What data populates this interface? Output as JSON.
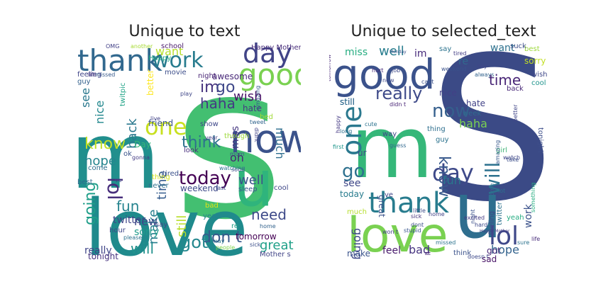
{
  "panels": [
    {
      "title": "Unique to text",
      "words": [
        {
          "text": "s",
          "weight": 1.0,
          "color": "#43bf71"
        },
        {
          "text": "love",
          "weight": 0.55,
          "color": "#1f8a8c"
        },
        {
          "text": "m",
          "weight": 0.52,
          "color": "#218f8d"
        },
        {
          "text": "u",
          "weight": 0.45,
          "color": "#2fb47c"
        },
        {
          "text": "now",
          "weight": 0.28,
          "color": "#3b528b"
        },
        {
          "text": "thank",
          "weight": 0.22,
          "color": "#31688e"
        },
        {
          "text": "good",
          "weight": 0.22,
          "color": "#7ad151"
        },
        {
          "text": "day",
          "weight": 0.22,
          "color": "#414487"
        },
        {
          "text": "work",
          "weight": 0.2,
          "color": "#287c8e"
        },
        {
          "text": "one",
          "weight": 0.2,
          "color": "#c8e020"
        },
        {
          "text": "today",
          "weight": 0.14,
          "color": "#440154"
        },
        {
          "text": "lol",
          "weight": 0.14,
          "color": "#472d7b"
        },
        {
          "text": "think",
          "weight": 0.12,
          "color": "#2c728e"
        },
        {
          "text": "im",
          "weight": 0.12,
          "color": "#46337e"
        },
        {
          "text": "go",
          "weight": 0.12,
          "color": "#3f4889"
        },
        {
          "text": "haha",
          "weight": 0.11,
          "color": "#443a83"
        },
        {
          "text": "don t",
          "weight": 0.11,
          "color": "#38588c"
        },
        {
          "text": "got",
          "weight": 0.11,
          "color": "#24878e"
        },
        {
          "text": "want",
          "weight": 0.1,
          "color": "#b5de2b"
        },
        {
          "text": "time",
          "weight": 0.1,
          "color": "#365c8d"
        },
        {
          "text": "know",
          "weight": 0.1,
          "color": "#c0df25"
        },
        {
          "text": "wish",
          "weight": 0.1,
          "color": "#481467"
        },
        {
          "text": "back",
          "weight": 0.1,
          "color": "#2a788e"
        },
        {
          "text": "going",
          "weight": 0.1,
          "color": "#1f9e89"
        },
        {
          "text": "fun",
          "weight": 0.09,
          "color": "#25838e"
        },
        {
          "text": "need",
          "weight": 0.09,
          "color": "#3e4a89"
        },
        {
          "text": "will",
          "weight": 0.09,
          "color": "#21918c"
        },
        {
          "text": "make",
          "weight": 0.09,
          "color": "#277f8e"
        },
        {
          "text": "still",
          "weight": 0.09,
          "color": "#b8de29"
        },
        {
          "text": "great",
          "weight": 0.08,
          "color": "#1fa088"
        },
        {
          "text": "well",
          "weight": 0.08,
          "color": "#3b528b"
        },
        {
          "text": "much",
          "weight": 0.08,
          "color": "#2e6e8e"
        },
        {
          "text": "see",
          "weight": 0.08,
          "color": "#2a788e"
        },
        {
          "text": "new",
          "weight": 0.07,
          "color": "#3e4989"
        },
        {
          "text": "oh",
          "weight": 0.07,
          "color": "#482576"
        },
        {
          "text": "miss",
          "weight": 0.07,
          "color": "#453781"
        },
        {
          "text": "hope",
          "weight": 0.07,
          "color": "#25858e"
        },
        {
          "text": "nice",
          "weight": 0.07,
          "color": "#23888e"
        },
        {
          "text": "sorry",
          "weight": 0.06,
          "color": "#1e9b8a"
        },
        {
          "text": "twitter",
          "weight": 0.05,
          "color": "#404688"
        },
        {
          "text": "really",
          "weight": 0.05,
          "color": "#404688"
        },
        {
          "text": "tonight",
          "weight": 0.05,
          "color": "#46327e"
        },
        {
          "text": "tomorrow",
          "weight": 0.05,
          "color": "#440154"
        },
        {
          "text": "weekend",
          "weight": 0.05,
          "color": "#3e4989"
        },
        {
          "text": "come",
          "weight": 0.04,
          "color": "#2d708e"
        },
        {
          "text": "best",
          "weight": 0.04,
          "color": "#306a8e"
        },
        {
          "text": "sleep",
          "weight": 0.04,
          "color": "#39568c"
        },
        {
          "text": "friend",
          "weight": 0.04,
          "color": "#3a538b"
        },
        {
          "text": "night",
          "weight": 0.04,
          "color": "#482475"
        },
        {
          "text": "hate",
          "weight": 0.04,
          "color": "#453882"
        },
        {
          "text": "awesome",
          "weight": 0.04,
          "color": "#482878"
        },
        {
          "text": "school",
          "weight": 0.035,
          "color": "#48186a"
        },
        {
          "text": "Happy Mother",
          "weight": 0.035,
          "color": "#472c7a"
        },
        {
          "text": "Mother s",
          "weight": 0.03,
          "color": "#414487"
        },
        {
          "text": "movie",
          "weight": 0.03,
          "color": "#3d4e8a"
        },
        {
          "text": "tired",
          "weight": 0.03,
          "color": "#3b518b"
        },
        {
          "text": "people",
          "weight": 0.03,
          "color": "#7fd34e"
        },
        {
          "text": "cool",
          "weight": 0.03,
          "color": "#3f4788"
        },
        {
          "text": "home",
          "weight": 0.03,
          "color": "#33638d"
        },
        {
          "text": "bad",
          "weight": 0.03,
          "color": "#dde318"
        },
        {
          "text": "guy",
          "weight": 0.03,
          "color": "#34618d"
        },
        {
          "text": "feeling",
          "weight": 0.03,
          "color": "#404588"
        },
        {
          "text": "life",
          "weight": 0.03,
          "color": "#46307e"
        },
        {
          "text": "twitpic",
          "weight": 0.03,
          "color": "#20a386"
        },
        {
          "text": "hour",
          "weight": 0.03,
          "color": "#3f4788"
        },
        {
          "text": "thing",
          "weight": 0.03,
          "color": "#d2e21b"
        },
        {
          "text": "look",
          "weight": 0.03,
          "color": "#472e7c"
        },
        {
          "text": "yeah",
          "weight": 0.03,
          "color": "#26818e"
        },
        {
          "text": "OMG",
          "weight": 0.025,
          "color": "#424086"
        },
        {
          "text": "another",
          "weight": 0.025,
          "color": "#a8db34"
        },
        {
          "text": "missed",
          "weight": 0.025,
          "color": "#375a8c"
        },
        {
          "text": "Happy",
          "weight": 0.025,
          "color": "#22a785"
        },
        {
          "text": "show",
          "weight": 0.025,
          "color": "#3f4889"
        },
        {
          "text": "though",
          "weight": 0.025,
          "color": "#9dd93b"
        },
        {
          "text": "never",
          "weight": 0.025,
          "color": "#2d718e"
        },
        {
          "text": "better",
          "weight": 0.025,
          "color": "#fde725"
        },
        {
          "text": "sick",
          "weight": 0.025,
          "color": "#3c4f8a"
        },
        {
          "text": "please",
          "weight": 0.025,
          "color": "#2c738e"
        },
        {
          "text": "year",
          "weight": 0.025,
          "color": "#433e85"
        },
        {
          "text": "soon",
          "weight": 0.02,
          "color": "#3e4a89"
        },
        {
          "text": "last",
          "weight": 0.02,
          "color": "#3d4d8a"
        },
        {
          "text": "mom",
          "weight": 0.02,
          "color": "#3b528b"
        },
        {
          "text": "gonna",
          "weight": 0.02,
          "color": "#443b84"
        },
        {
          "text": "say",
          "weight": 0.02,
          "color": "#3f4788"
        },
        {
          "text": "Day",
          "weight": 0.02,
          "color": "#35b779"
        },
        {
          "text": "ok",
          "weight": 0.02,
          "color": "#3a538b"
        },
        {
          "text": "ve",
          "weight": 0.02,
          "color": "#3d4e8a"
        },
        {
          "text": "re",
          "weight": 0.02,
          "color": "#1f9f88"
        },
        {
          "text": "bed",
          "weight": 0.02,
          "color": "#a2da37"
        },
        {
          "text": "may",
          "weight": 0.02,
          "color": "#2a768e"
        },
        {
          "text": "live",
          "weight": 0.02,
          "color": "#414287"
        },
        {
          "text": "play",
          "weight": 0.02,
          "color": "#3f4788"
        },
        {
          "text": "didnt",
          "weight": 0.02,
          "color": "#414487"
        },
        {
          "text": "amazing",
          "weight": 0.02,
          "color": "#365d8d"
        },
        {
          "text": "tweet",
          "weight": 0.02,
          "color": "#32658e"
        },
        {
          "text": "watching",
          "weight": 0.02,
          "color": "#2c738e"
        }
      ]
    },
    {
      "title": "Unique to selected_text",
      "words": [
        {
          "text": "S",
          "weight": 1.0,
          "color": "#3b4a86"
        },
        {
          "text": "m",
          "weight": 0.55,
          "color": "#35b779"
        },
        {
          "text": "u",
          "weight": 0.5,
          "color": "#2e6e8e"
        },
        {
          "text": "love",
          "weight": 0.38,
          "color": "#7ad151"
        },
        {
          "text": "good",
          "weight": 0.32,
          "color": "#3b528b"
        },
        {
          "text": "one",
          "weight": 0.24,
          "color": "#2a788e"
        },
        {
          "text": "thank",
          "weight": 0.22,
          "color": "#287c8e"
        },
        {
          "text": "day",
          "weight": 0.2,
          "color": "#3e4989"
        },
        {
          "text": "lol",
          "weight": 0.2,
          "color": "#3f4889"
        },
        {
          "text": "now",
          "weight": 0.14,
          "color": "#355f8d"
        },
        {
          "text": "will",
          "weight": 0.14,
          "color": "#2c718e"
        },
        {
          "text": "really",
          "weight": 0.12,
          "color": "#3e4a89"
        },
        {
          "text": "know",
          "weight": 0.12,
          "color": "#38598c"
        },
        {
          "text": "go",
          "weight": 0.12,
          "color": "#2d708e"
        },
        {
          "text": "time",
          "weight": 0.12,
          "color": "#482576"
        },
        {
          "text": "well",
          "weight": 0.1,
          "color": "#287d8e"
        },
        {
          "text": "miss",
          "weight": 0.08,
          "color": "#27ad81"
        },
        {
          "text": "im",
          "weight": 0.08,
          "color": "#472a7a"
        },
        {
          "text": "want",
          "weight": 0.07,
          "color": "#2d718e"
        },
        {
          "text": "haha",
          "weight": 0.08,
          "color": "#7ad151"
        },
        {
          "text": "work",
          "weight": 0.08,
          "color": "#3b528b"
        },
        {
          "text": "fun",
          "weight": 0.08,
          "color": "#2a788e"
        },
        {
          "text": "going",
          "weight": 0.08,
          "color": "#3e4989"
        },
        {
          "text": "hope",
          "weight": 0.08,
          "color": "#33638d"
        },
        {
          "text": "got",
          "weight": 0.07,
          "color": "#482677"
        },
        {
          "text": "great",
          "weight": 0.07,
          "color": "#3b528b"
        },
        {
          "text": "feel",
          "weight": 0.06,
          "color": "#481a6c"
        },
        {
          "text": "bad",
          "weight": 0.06,
          "color": "#463480"
        },
        {
          "text": "make",
          "weight": 0.05,
          "color": "#3a538b"
        },
        {
          "text": "see",
          "weight": 0.06,
          "color": "#3f4788"
        },
        {
          "text": "today",
          "weight": 0.05,
          "color": "#287c8e"
        },
        {
          "text": "nice",
          "weight": 0.05,
          "color": "#424086"
        },
        {
          "text": "sorry",
          "weight": 0.05,
          "color": "#c2df23"
        },
        {
          "text": "wish",
          "weight": 0.05,
          "color": "#3f4889"
        },
        {
          "text": "best",
          "weight": 0.05,
          "color": "#9dd93b"
        },
        {
          "text": "cool",
          "weight": 0.04,
          "color": "#1f948c"
        },
        {
          "text": "back",
          "weight": 0.04,
          "color": "#482878"
        },
        {
          "text": "still",
          "weight": 0.04,
          "color": "#3e4989"
        },
        {
          "text": "hate",
          "weight": 0.04,
          "color": "#414287"
        },
        {
          "text": "sad",
          "weight": 0.04,
          "color": "#481467"
        },
        {
          "text": "yeah",
          "weight": 0.04,
          "color": "#25ac82"
        },
        {
          "text": "twitter",
          "weight": 0.04,
          "color": "#2c728e"
        },
        {
          "text": "awesome",
          "weight": 0.035,
          "color": "#2d708e"
        },
        {
          "text": "much",
          "weight": 0.035,
          "color": "#b5de2b"
        },
        {
          "text": "ur",
          "weight": 0.035,
          "color": "#3e4989"
        },
        {
          "text": "way",
          "weight": 0.03,
          "color": "#404688"
        },
        {
          "text": "guy",
          "weight": 0.03,
          "color": "#2c738e"
        },
        {
          "text": "thing",
          "weight": 0.03,
          "color": "#2e6f8e"
        },
        {
          "text": "week",
          "weight": 0.03,
          "color": "#2f6c8e"
        },
        {
          "text": "tonight",
          "weight": 0.03,
          "color": "#3d4e8a"
        },
        {
          "text": "feeling",
          "weight": 0.03,
          "color": "#3f4788"
        },
        {
          "text": "didn t",
          "weight": 0.03,
          "color": "#482475"
        },
        {
          "text": "think",
          "weight": 0.03,
          "color": "#3b528b"
        },
        {
          "text": "ll",
          "weight": 0.03,
          "color": "#482576"
        },
        {
          "text": "re",
          "weight": 0.03,
          "color": "#31688e"
        },
        {
          "text": "ve",
          "weight": 0.03,
          "color": "#414487"
        },
        {
          "text": "lot",
          "weight": 0.025,
          "color": "#2d708e"
        },
        {
          "text": "happy",
          "weight": 0.025,
          "color": "#443983"
        },
        {
          "text": "missed",
          "weight": 0.025,
          "color": "#2c738e"
        },
        {
          "text": "sick",
          "weight": 0.025,
          "color": "#46337e"
        },
        {
          "text": "tired",
          "weight": 0.02,
          "color": "#433d84"
        },
        {
          "text": "say",
          "weight": 0.02,
          "color": "#2c738e"
        },
        {
          "text": "hurt",
          "weight": 0.02,
          "color": "#472d7b"
        },
        {
          "text": "job",
          "weight": 0.02,
          "color": "#3e4989"
        },
        {
          "text": "hey",
          "weight": 0.02,
          "color": "#3f4788"
        },
        {
          "text": "always",
          "weight": 0.02,
          "color": "#33638d"
        },
        {
          "text": "night",
          "weight": 0.02,
          "color": "#3b528b"
        },
        {
          "text": "long",
          "weight": 0.02,
          "color": "#2d708e"
        },
        {
          "text": "first",
          "weight": 0.02,
          "color": "#1f968b"
        },
        {
          "text": "won t",
          "weight": 0.02,
          "color": "#424086"
        },
        {
          "text": "dont",
          "weight": 0.02,
          "color": "#3c4f8a"
        },
        {
          "text": "home",
          "weight": 0.02,
          "color": "#414487"
        },
        {
          "text": "doesn t",
          "weight": 0.02,
          "color": "#3e4989"
        },
        {
          "text": "still",
          "weight": 0.02,
          "color": "#2e6e8e"
        },
        {
          "text": "weekend",
          "weight": 0.02,
          "color": "#3b528b"
        },
        {
          "text": "girl",
          "weight": 0.02,
          "color": "#45b57a"
        },
        {
          "text": "watch",
          "weight": 0.015,
          "color": "#3f4788"
        },
        {
          "text": "new",
          "weight": 0.015,
          "color": "#3e4a89"
        },
        {
          "text": "stupid",
          "weight": 0.015,
          "color": "#39568c"
        },
        {
          "text": "guess",
          "weight": 0.015,
          "color": "#31688e"
        },
        {
          "text": "little",
          "weight": 0.015,
          "color": "#3d4d8a"
        },
        {
          "text": "Happy Mother",
          "weight": 0.015,
          "color": "#433d84"
        },
        {
          "text": "amazing",
          "weight": 0.015,
          "color": "#38598c"
        },
        {
          "text": "something",
          "weight": 0.015,
          "color": "#27ad81"
        },
        {
          "text": "tomorrow",
          "weight": 0.015,
          "color": "#482878"
        },
        {
          "text": "Monday",
          "weight": 0.015,
          "color": "#3a538b"
        },
        {
          "text": "cute",
          "weight": 0.015,
          "color": "#2c728e"
        },
        {
          "text": "better",
          "weight": 0.015,
          "color": "#404688"
        },
        {
          "text": "suck",
          "weight": 0.03,
          "color": "#3d4e8a"
        },
        {
          "text": "take",
          "weight": 0.02,
          "color": "#3d4e8a"
        },
        {
          "text": "hard",
          "weight": 0.02,
          "color": "#3e4989"
        },
        {
          "text": "life",
          "weight": 0.015,
          "color": "#472c7a"
        },
        {
          "text": "cant",
          "weight": 0.015,
          "color": "#3b528b"
        },
        {
          "text": "sure",
          "weight": 0.015,
          "color": "#2c738e"
        },
        {
          "text": "excited",
          "weight": 0.015,
          "color": "#443a83"
        }
      ]
    }
  ]
}
